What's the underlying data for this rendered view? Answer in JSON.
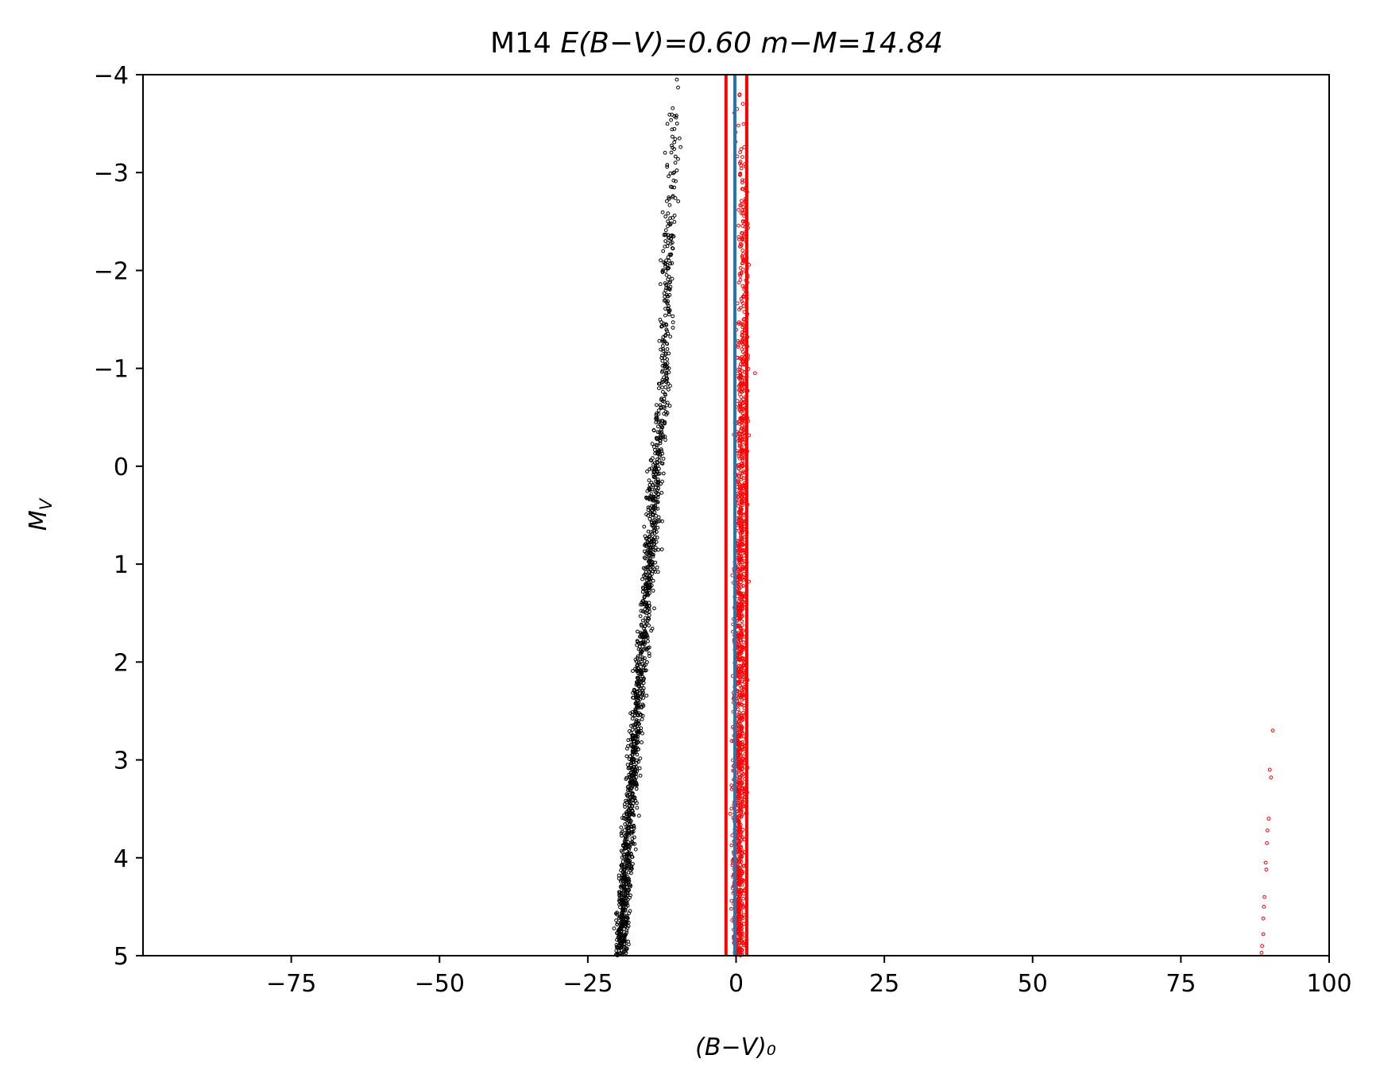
{
  "chart_data": {
    "type": "scatter",
    "title": {
      "cluster": "M14",
      "reddening_label": "E(B−V)=0.60",
      "distance_label": "m−M=14.84"
    },
    "xlabel": "(B−V)₀",
    "ylabel": "M_V",
    "xlim": [
      -100,
      100
    ],
    "ylim": [
      5,
      -4
    ],
    "y_inverted": true,
    "grid": false,
    "legend": "none",
    "xticks": [
      -75,
      -50,
      -25,
      0,
      25,
      50,
      75,
      100
    ],
    "xtick_labels": [
      "−75",
      "−50",
      "−25",
      "0",
      "25",
      "50",
      "75",
      "100"
    ],
    "yticks": [
      -4,
      -3,
      -2,
      -1,
      0,
      1,
      2,
      3,
      4,
      5
    ],
    "ytick_labels": [
      "−4",
      "−3",
      "−2",
      "−1",
      "0",
      "1",
      "2",
      "3",
      "4",
      "5"
    ],
    "vertical_lines": [
      {
        "x": -1.7,
        "color": "#ff0000"
      },
      {
        "x": 1.8,
        "color": "#ff0000"
      },
      {
        "x": -0.2,
        "color": "#1f77b4"
      }
    ],
    "series": [
      {
        "color": "#000000",
        "marker": "open-circle",
        "trend": [
          {
            "y": -3.95,
            "x": -10.0
          },
          {
            "y": -2.5,
            "x": -11.3
          },
          {
            "y": -1.0,
            "x": -12.0
          },
          {
            "y": 0.0,
            "x": -13.5
          },
          {
            "y": 1.0,
            "x": -14.5
          },
          {
            "y": 2.0,
            "x": -16.0
          },
          {
            "y": 3.0,
            "x": -17.3
          },
          {
            "y": 4.0,
            "x": -18.3
          },
          {
            "y": 5.0,
            "x": -19.5
          }
        ],
        "outliers": [
          {
            "x": -10.0,
            "y": -3.95
          },
          {
            "x": -10.8,
            "y": -2.85
          },
          {
            "x": -11.0,
            "y": -2.48
          },
          {
            "x": -11.3,
            "y": -2.1
          },
          {
            "x": -11.2,
            "y": -1.75
          },
          {
            "x": -11.8,
            "y": -1.45
          },
          {
            "x": -11.3,
            "y": -1.0
          },
          {
            "x": -12.5,
            "y": 0.85
          },
          {
            "x": -19.5,
            "y": 4.6
          }
        ]
      },
      {
        "color": "#ff0000",
        "marker": "open-circle",
        "trend": [
          {
            "y": -3.85,
            "x": 0.6
          },
          {
            "y": -2.5,
            "x": 1.3
          },
          {
            "y": -1.0,
            "x": 1.0
          },
          {
            "y": 0.0,
            "x": 0.9
          },
          {
            "y": 1.0,
            "x": 0.7
          },
          {
            "y": 2.0,
            "x": 0.5
          },
          {
            "y": 3.0,
            "x": 0.6
          },
          {
            "y": 3.7,
            "x": 0.3
          },
          {
            "y": 5.0,
            "x": 0.5
          }
        ],
        "outliers": [
          {
            "x": 3.2,
            "y": -0.95
          },
          {
            "x": -1.0,
            "y": 3.55
          },
          {
            "x": 90.5,
            "y": 2.7
          },
          {
            "x": 90.0,
            "y": 3.1
          },
          {
            "x": 90.2,
            "y": 3.18
          },
          {
            "x": 89.8,
            "y": 3.6
          },
          {
            "x": 89.6,
            "y": 3.72
          },
          {
            "x": 89.5,
            "y": 3.85
          },
          {
            "x": 89.3,
            "y": 4.05
          },
          {
            "x": 89.4,
            "y": 4.12
          },
          {
            "x": 89.1,
            "y": 4.4
          },
          {
            "x": 89.0,
            "y": 4.5
          },
          {
            "x": 88.9,
            "y": 4.62
          },
          {
            "x": 88.9,
            "y": 4.78
          },
          {
            "x": 88.7,
            "y": 4.9
          },
          {
            "x": 88.6,
            "y": 4.97
          }
        ]
      }
    ]
  }
}
